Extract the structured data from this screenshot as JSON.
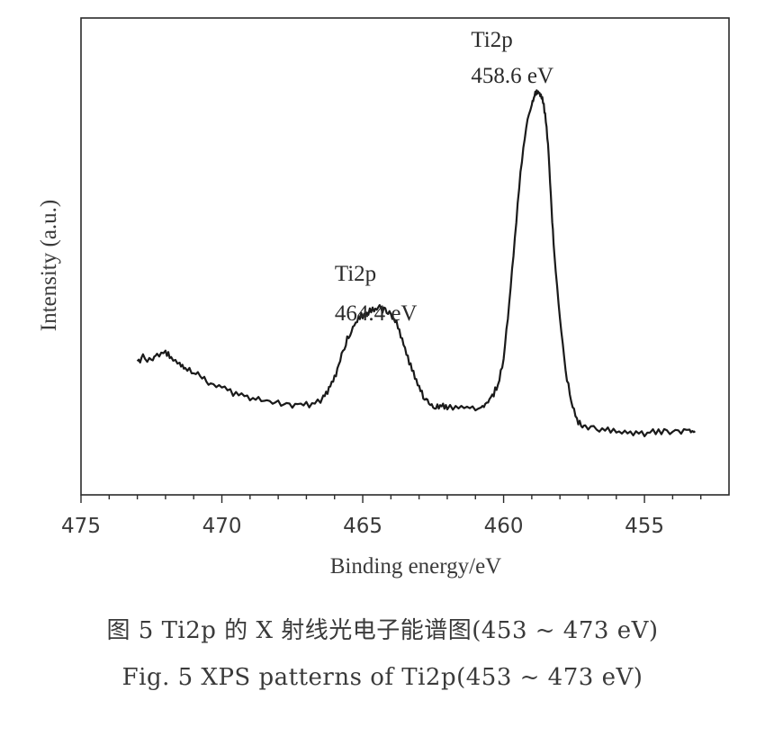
{
  "chart_data": {
    "type": "line",
    "xlabel": "Binding energy/eV",
    "ylabel": "Intensity (a.u.)",
    "xlim": [
      475,
      452
    ],
    "x_ticks": [
      475,
      470,
      465,
      460,
      455
    ],
    "x_tick_labels": [
      "475",
      "470",
      "465",
      "460",
      "455"
    ],
    "ylim": [
      0,
      100
    ],
    "y_ticks_labeled": false,
    "grid": false,
    "legend": "none",
    "annotations": [
      {
        "label_line1": "Ti2p",
        "label_line2": "464.4 eV",
        "x": 464.4
      },
      {
        "label_line1": "Ti2p",
        "label_line2": "458.6 eV",
        "x": 458.6
      }
    ],
    "series": [
      {
        "x": [
          473.0,
          472.8,
          472.5,
          472.3,
          472.0,
          471.8,
          471.5,
          471.3,
          471.0,
          470.7,
          470.4,
          470.0,
          469.6,
          469.2,
          468.8,
          468.4,
          468.0,
          467.6,
          467.2,
          466.8,
          466.4,
          466.2,
          466.0,
          465.8,
          465.6,
          465.4,
          465.2,
          465.0,
          464.8,
          464.6,
          464.4,
          464.2,
          464.0,
          463.8,
          463.6,
          463.4,
          463.2,
          463.0,
          462.8,
          462.6,
          462.4,
          462.2,
          462.0,
          461.6,
          461.2,
          460.8,
          460.6,
          460.4,
          460.2,
          460.0,
          459.8,
          459.6,
          459.4,
          459.2,
          459.0,
          458.9,
          458.8,
          458.7,
          458.6,
          458.5,
          458.4,
          458.3,
          458.2,
          458.0,
          457.8,
          457.6,
          457.4,
          457.2,
          457.0,
          456.6,
          456.2,
          455.8,
          455.4,
          455.0,
          454.6,
          454.2,
          453.8,
          453.4,
          453.2
        ],
        "y": [
          26.5,
          27.5,
          26.8,
          28.0,
          29.0,
          27.2,
          25.5,
          24.5,
          23.8,
          22.2,
          20.5,
          19.5,
          17.8,
          17.0,
          16.2,
          15.5,
          15.0,
          14.6,
          14.4,
          14.8,
          16.5,
          19.0,
          22.0,
          27.0,
          31.5,
          35.0,
          37.5,
          39.0,
          39.8,
          40.5,
          40.8,
          40.2,
          39.0,
          37.0,
          32.5,
          27.5,
          23.0,
          19.0,
          16.5,
          14.8,
          14.0,
          14.3,
          13.9,
          14.4,
          14.0,
          13.2,
          15.0,
          17.0,
          20.0,
          27.0,
          42.0,
          60.0,
          78.0,
          90.0,
          96.5,
          98.5,
          99.5,
          99.0,
          97.0,
          92.0,
          82.0,
          68.0,
          55.0,
          38.0,
          24.0,
          15.5,
          10.5,
          9.2,
          8.5,
          8.0,
          7.7,
          7.3,
          7.1,
          7.0,
          7.4,
          7.2,
          7.6,
          7.3,
          7.5
        ]
      }
    ]
  },
  "captions": {
    "cn": "图 5   Ti2p 的 X 射线光电子能谱图(453 ~ 473 eV)",
    "en": "Fig. 5   XPS patterns of Ti2p(453 ~ 473 eV)"
  }
}
